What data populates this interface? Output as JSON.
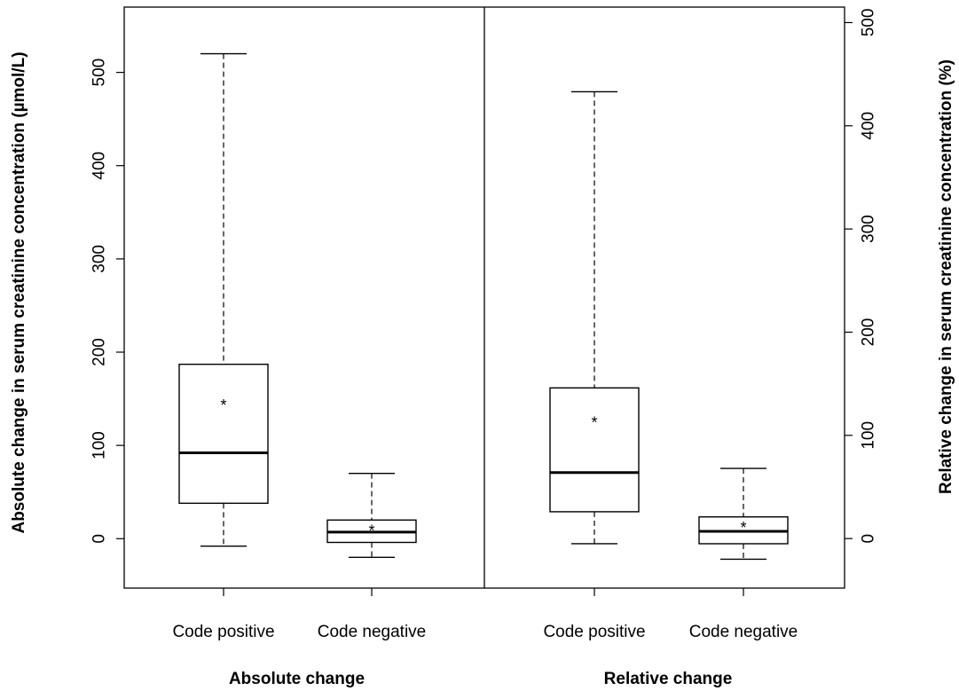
{
  "chart_data": {
    "type": "box",
    "left_axis": {
      "label": "Absolute change in serum creatinine concentration (µmol/L)",
      "range": [
        -53,
        570
      ],
      "ticks": [
        0,
        100,
        200,
        300,
        400,
        500
      ]
    },
    "right_axis": {
      "label": "Relative change in serum creatinine concentration (%)",
      "range": [
        -48,
        515
      ],
      "ticks": [
        0,
        100,
        200,
        300,
        400,
        500
      ]
    },
    "panels": [
      {
        "group_label": "Absolute change",
        "axis": "left",
        "boxes": [
          {
            "category": "Code positive",
            "min": -8,
            "q1": 38,
            "median": 92,
            "q3": 187,
            "max": 520,
            "mean": 146,
            "mean_marker": "*"
          },
          {
            "category": "Code negative",
            "min": -20,
            "q1": -4,
            "median": 7,
            "q3": 20,
            "max": 70,
            "mean": 11,
            "mean_marker": "*"
          }
        ]
      },
      {
        "group_label": "Relative change",
        "axis": "right",
        "boxes": [
          {
            "category": "Code positive",
            "min": -5,
            "q1": 26,
            "median": 64,
            "q3": 146,
            "max": 433,
            "mean": 115,
            "mean_marker": "*"
          },
          {
            "category": "Code negative",
            "min": -20,
            "q1": -5,
            "median": 7,
            "q3": 21,
            "max": 68,
            "mean": 13,
            "mean_marker": "*"
          }
        ]
      }
    ],
    "grid": false,
    "legend": "none"
  }
}
